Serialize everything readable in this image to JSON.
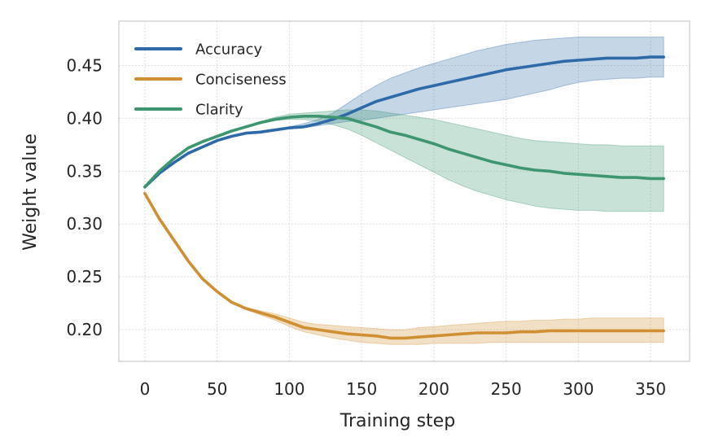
{
  "chart_data": {
    "type": "line",
    "xlabel": "Training step",
    "ylabel": "Weight value",
    "xlim": [
      -18,
      377
    ],
    "ylim": [
      0.17,
      0.492
    ],
    "x_ticks": [
      0,
      50,
      100,
      150,
      200,
      250,
      300,
      350
    ],
    "x_tick_labels": [
      "0",
      "50",
      "100",
      "150",
      "200",
      "250",
      "300",
      "350"
    ],
    "y_ticks": [
      0.2,
      0.25,
      0.3,
      0.35,
      0.4,
      0.45
    ],
    "y_tick_labels": [
      "0.20",
      "0.25",
      "0.30",
      "0.35",
      "0.40",
      "0.45"
    ],
    "grid": true,
    "grid_style": "dotted",
    "legend_position": "top-left",
    "x": [
      0,
      10,
      20,
      30,
      40,
      50,
      60,
      70,
      80,
      90,
      100,
      110,
      120,
      130,
      140,
      150,
      160,
      170,
      180,
      190,
      200,
      210,
      220,
      230,
      240,
      250,
      260,
      270,
      280,
      290,
      300,
      310,
      320,
      330,
      340,
      350,
      359
    ],
    "series": [
      {
        "name": "Accuracy",
        "color": "#2f6aa8",
        "band_color": "#2f6aa8",
        "values": [
          0.335,
          0.348,
          0.358,
          0.367,
          0.373,
          0.379,
          0.383,
          0.386,
          0.387,
          0.389,
          0.391,
          0.392,
          0.395,
          0.399,
          0.404,
          0.41,
          0.416,
          0.42,
          0.424,
          0.428,
          0.431,
          0.434,
          0.437,
          0.44,
          0.443,
          0.446,
          0.448,
          0.45,
          0.452,
          0.454,
          0.455,
          0.456,
          0.457,
          0.457,
          0.457,
          0.458,
          0.458
        ],
        "lower": [
          0.335,
          0.348,
          0.358,
          0.367,
          0.373,
          0.379,
          0.383,
          0.386,
          0.387,
          0.389,
          0.39,
          0.391,
          0.393,
          0.395,
          0.397,
          0.398,
          0.4,
          0.402,
          0.404,
          0.406,
          0.408,
          0.41,
          0.412,
          0.414,
          0.416,
          0.418,
          0.421,
          0.424,
          0.427,
          0.431,
          0.434,
          0.436,
          0.437,
          0.438,
          0.438,
          0.439,
          0.439
        ],
        "upper": [
          0.335,
          0.348,
          0.358,
          0.367,
          0.373,
          0.379,
          0.383,
          0.386,
          0.388,
          0.39,
          0.392,
          0.395,
          0.399,
          0.405,
          0.414,
          0.423,
          0.431,
          0.438,
          0.443,
          0.448,
          0.452,
          0.456,
          0.46,
          0.464,
          0.467,
          0.47,
          0.472,
          0.474,
          0.475,
          0.476,
          0.477,
          0.477,
          0.477,
          0.477,
          0.477,
          0.477,
          0.477
        ]
      },
      {
        "name": "Conciseness",
        "color": "#d08f33",
        "band_color": "#d08f33",
        "values": [
          0.329,
          0.305,
          0.285,
          0.265,
          0.248,
          0.236,
          0.226,
          0.22,
          0.216,
          0.212,
          0.207,
          0.202,
          0.2,
          0.198,
          0.196,
          0.195,
          0.194,
          0.192,
          0.192,
          0.193,
          0.194,
          0.195,
          0.196,
          0.197,
          0.197,
          0.197,
          0.198,
          0.198,
          0.199,
          0.199,
          0.199,
          0.199,
          0.199,
          0.199,
          0.199,
          0.199,
          0.199
        ],
        "lower": [
          0.329,
          0.305,
          0.285,
          0.265,
          0.248,
          0.236,
          0.226,
          0.219,
          0.214,
          0.209,
          0.203,
          0.198,
          0.195,
          0.192,
          0.19,
          0.188,
          0.187,
          0.186,
          0.186,
          0.186,
          0.187,
          0.187,
          0.187,
          0.187,
          0.188,
          0.188,
          0.188,
          0.188,
          0.188,
          0.188,
          0.188,
          0.188,
          0.188,
          0.188,
          0.188,
          0.188,
          0.188
        ],
        "upper": [
          0.329,
          0.305,
          0.285,
          0.265,
          0.248,
          0.236,
          0.226,
          0.221,
          0.218,
          0.215,
          0.211,
          0.207,
          0.205,
          0.204,
          0.203,
          0.202,
          0.201,
          0.2,
          0.2,
          0.202,
          0.203,
          0.204,
          0.205,
          0.206,
          0.207,
          0.208,
          0.208,
          0.209,
          0.209,
          0.21,
          0.21,
          0.211,
          0.211,
          0.211,
          0.211,
          0.211,
          0.211
        ]
      },
      {
        "name": "Clarity",
        "color": "#3d9670",
        "band_color": "#3d9670",
        "values": [
          0.335,
          0.35,
          0.362,
          0.372,
          0.378,
          0.383,
          0.388,
          0.392,
          0.396,
          0.399,
          0.401,
          0.402,
          0.402,
          0.401,
          0.4,
          0.396,
          0.392,
          0.387,
          0.384,
          0.38,
          0.376,
          0.371,
          0.367,
          0.363,
          0.359,
          0.356,
          0.353,
          0.351,
          0.35,
          0.348,
          0.347,
          0.346,
          0.345,
          0.344,
          0.344,
          0.343,
          0.343
        ],
        "lower": [
          0.335,
          0.35,
          0.362,
          0.372,
          0.378,
          0.383,
          0.388,
          0.392,
          0.395,
          0.398,
          0.399,
          0.399,
          0.397,
          0.394,
          0.39,
          0.384,
          0.377,
          0.37,
          0.363,
          0.356,
          0.349,
          0.342,
          0.336,
          0.331,
          0.327,
          0.323,
          0.32,
          0.317,
          0.315,
          0.314,
          0.313,
          0.313,
          0.312,
          0.312,
          0.312,
          0.312,
          0.312
        ],
        "upper": [
          0.335,
          0.35,
          0.362,
          0.372,
          0.378,
          0.383,
          0.388,
          0.392,
          0.397,
          0.401,
          0.404,
          0.405,
          0.406,
          0.407,
          0.408,
          0.408,
          0.407,
          0.405,
          0.403,
          0.401,
          0.399,
          0.396,
          0.393,
          0.39,
          0.387,
          0.384,
          0.381,
          0.379,
          0.378,
          0.377,
          0.376,
          0.375,
          0.375,
          0.374,
          0.374,
          0.374,
          0.374
        ]
      }
    ]
  }
}
